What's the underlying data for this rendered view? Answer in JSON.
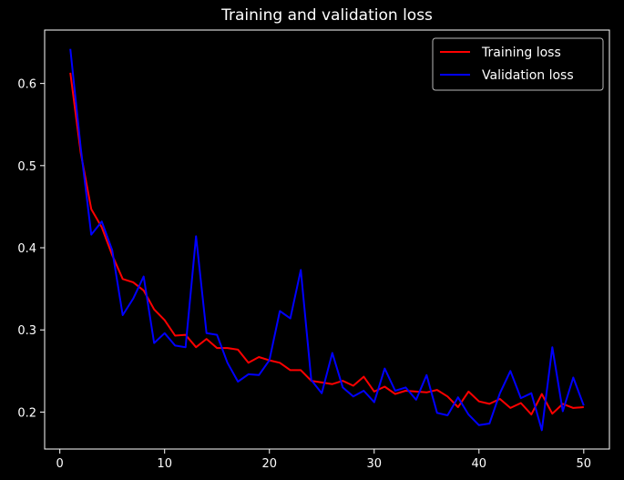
{
  "chart_data": {
    "type": "line",
    "title": "Training and validation loss",
    "xlabel": "",
    "ylabel": "",
    "xlim": [
      -1.45,
      52.45
    ],
    "ylim": [
      0.155,
      0.665
    ],
    "x_ticks": [
      0,
      10,
      20,
      30,
      40,
      50
    ],
    "y_ticks": [
      0.2,
      0.3,
      0.4,
      0.5,
      0.6
    ],
    "grid": false,
    "legend_position": "top-right",
    "x": [
      1,
      2,
      3,
      4,
      5,
      6,
      7,
      8,
      9,
      10,
      11,
      12,
      13,
      14,
      15,
      16,
      17,
      18,
      19,
      20,
      21,
      22,
      23,
      24,
      25,
      26,
      27,
      28,
      29,
      30,
      31,
      32,
      33,
      34,
      35,
      36,
      37,
      38,
      39,
      40,
      41,
      42,
      43,
      44,
      45,
      46,
      47,
      48,
      49,
      50
    ],
    "series": [
      {
        "name": "Training loss",
        "color": "#ff0000",
        "values": [
          0.613,
          0.515,
          0.447,
          0.425,
          0.391,
          0.362,
          0.358,
          0.348,
          0.325,
          0.312,
          0.293,
          0.294,
          0.279,
          0.289,
          0.278,
          0.278,
          0.276,
          0.26,
          0.267,
          0.263,
          0.26,
          0.251,
          0.251,
          0.238,
          0.236,
          0.234,
          0.238,
          0.232,
          0.243,
          0.225,
          0.231,
          0.222,
          0.226,
          0.225,
          0.224,
          0.227,
          0.219,
          0.206,
          0.225,
          0.213,
          0.21,
          0.216,
          0.205,
          0.211,
          0.197,
          0.222,
          0.198,
          0.21,
          0.205,
          0.206
        ]
      },
      {
        "name": "Validation loss",
        "color": "#0000ff",
        "values": [
          0.642,
          0.521,
          0.416,
          0.432,
          0.397,
          0.318,
          0.338,
          0.365,
          0.284,
          0.296,
          0.281,
          0.279,
          0.414,
          0.296,
          0.294,
          0.26,
          0.237,
          0.246,
          0.245,
          0.263,
          0.323,
          0.314,
          0.373,
          0.239,
          0.223,
          0.272,
          0.23,
          0.219,
          0.226,
          0.212,
          0.253,
          0.226,
          0.23,
          0.215,
          0.245,
          0.199,
          0.196,
          0.218,
          0.197,
          0.184,
          0.186,
          0.223,
          0.25,
          0.217,
          0.223,
          0.178,
          0.279,
          0.201,
          0.242,
          0.208
        ]
      }
    ]
  }
}
